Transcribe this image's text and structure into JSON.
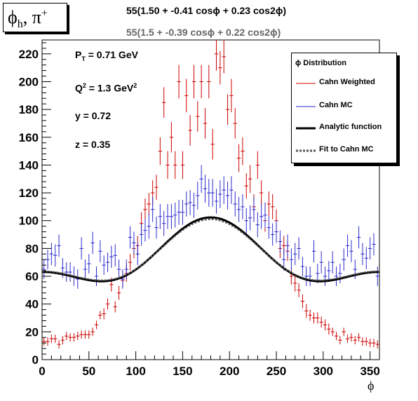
{
  "hist_title": "φh, π+",
  "fit_cahn_weighted": "55(1.50 + -0.41 cosϕ + 0.23 cos2ϕ)",
  "fit_cahn_mc": "55(1.5 + -0.39 cosϕ + 0.22 cos2ϕ)",
  "params": {
    "pt": "PT = 0.71 GeV",
    "q2": "Q2 = 1.3 GeV2",
    "y": "y = 0.72",
    "z": "z = 0.35"
  },
  "legend": {
    "title": "ϕ Distribution",
    "items": [
      "Cahn Weighted",
      "Cahn MC",
      "Analytic function",
      "Fit to Cahn MC"
    ]
  },
  "colors": {
    "cahn_weighted": "#cc0000",
    "cahn_mc": "#2a2acc",
    "analytic": "#000000",
    "fit": "#555555"
  },
  "chart_data": {
    "type": "scatter",
    "xlabel": "ϕ",
    "xlim": [
      0,
      360
    ],
    "ylim": [
      0,
      230
    ],
    "xticks": [
      0,
      50,
      100,
      150,
      200,
      250,
      300,
      350
    ],
    "yticks": [
      0,
      20,
      40,
      60,
      80,
      100,
      120,
      140,
      160,
      180,
      200,
      220
    ],
    "bin_width": 4,
    "series": [
      {
        "name": "Cahn Weighted",
        "x": [
          2,
          6,
          10,
          14,
          18,
          22,
          26,
          30,
          34,
          38,
          42,
          46,
          50,
          54,
          58,
          62,
          66,
          70,
          74,
          78,
          82,
          86,
          90,
          94,
          98,
          102,
          106,
          110,
          114,
          118,
          122,
          126,
          130,
          134,
          138,
          142,
          146,
          150,
          154,
          158,
          162,
          166,
          170,
          174,
          178,
          182,
          186,
          190,
          194,
          198,
          202,
          206,
          210,
          214,
          218,
          222,
          226,
          230,
          234,
          238,
          242,
          246,
          250,
          254,
          258,
          262,
          266,
          270,
          274,
          278,
          282,
          286,
          290,
          294,
          298,
          302,
          306,
          310,
          314,
          318,
          322,
          326,
          330,
          334,
          338,
          342,
          346,
          350,
          354,
          358
        ],
        "y": [
          13,
          13,
          15,
          15,
          11,
          14,
          17,
          16,
          16,
          17,
          18,
          18,
          18,
          20,
          25,
          32,
          33,
          40,
          54,
          38,
          48,
          57,
          62,
          70,
          80,
          82,
          98,
          108,
          112,
          120,
          124,
          150,
          185,
          140,
          160,
          140,
          200,
          140,
          190,
          165,
          200,
          175,
          200,
          170,
          200,
          155,
          220,
          210,
          218,
          180,
          190,
          170,
          145,
          150,
          125,
          130,
          110,
          140,
          120,
          100,
          112,
          110,
          100,
          80,
          82,
          78,
          60,
          55,
          50,
          42,
          35,
          32,
          30,
          30,
          27,
          25,
          22,
          20,
          17,
          14,
          20,
          15,
          16,
          14,
          16,
          13,
          13,
          12,
          12,
          11
        ],
        "err": [
          3,
          3,
          3,
          3,
          3,
          3,
          3,
          3,
          3,
          3,
          3,
          3,
          3,
          3,
          3,
          3,
          4,
          4,
          5,
          4,
          5,
          5,
          6,
          6,
          7,
          7,
          8,
          8,
          8,
          9,
          9,
          10,
          11,
          10,
          11,
          10,
          12,
          10,
          12,
          11,
          12,
          11,
          12,
          11,
          12,
          11,
          12,
          12,
          12,
          11,
          12,
          11,
          10,
          10,
          9,
          10,
          9,
          10,
          9,
          8,
          9,
          9,
          8,
          7,
          7,
          7,
          6,
          6,
          5,
          5,
          5,
          4,
          4,
          4,
          4,
          4,
          4,
          3,
          3,
          3,
          3,
          3,
          3,
          3,
          3,
          3,
          3,
          3,
          3,
          3
        ]
      },
      {
        "name": "Cahn MC",
        "x": [
          2,
          6,
          10,
          14,
          18,
          22,
          26,
          30,
          34,
          38,
          42,
          46,
          50,
          54,
          58,
          62,
          66,
          70,
          74,
          78,
          82,
          86,
          90,
          94,
          98,
          102,
          106,
          110,
          114,
          118,
          122,
          126,
          130,
          134,
          138,
          142,
          146,
          150,
          154,
          158,
          162,
          166,
          170,
          174,
          178,
          182,
          186,
          190,
          194,
          198,
          202,
          206,
          210,
          214,
          218,
          222,
          226,
          230,
          234,
          238,
          242,
          246,
          250,
          254,
          258,
          262,
          266,
          270,
          274,
          278,
          282,
          286,
          290,
          294,
          298,
          302,
          306,
          310,
          314,
          318,
          322,
          326,
          330,
          334,
          338,
          342,
          346,
          350,
          354,
          358
        ],
        "y": [
          65,
          72,
          76,
          75,
          82,
          66,
          63,
          63,
          60,
          58,
          80,
          65,
          69,
          84,
          60,
          78,
          68,
          70,
          74,
          75,
          65,
          58,
          65,
          88,
          84,
          76,
          90,
          93,
          96,
          108,
          95,
          103,
          98,
          103,
          103,
          104,
          106,
          106,
          112,
          113,
          111,
          118,
          130,
          123,
          120,
          120,
          114,
          119,
          122,
          118,
          122,
          112,
          108,
          110,
          100,
          102,
          108,
          97,
          103,
          104,
          95,
          90,
          92,
          85,
          72,
          82,
          72,
          76,
          80,
          67,
          60,
          60,
          78,
          62,
          70,
          60,
          64,
          70,
          60,
          62,
          72,
          82,
          78,
          65,
          88,
          76,
          73,
          80,
          83,
          60
        ],
        "err": [
          7,
          7,
          8,
          8,
          8,
          7,
          7,
          7,
          7,
          7,
          8,
          7,
          7,
          8,
          7,
          8,
          7,
          7,
          8,
          8,
          7,
          7,
          7,
          8,
          8,
          8,
          8,
          8,
          9,
          9,
          8,
          9,
          9,
          9,
          9,
          9,
          9,
          9,
          9,
          9,
          9,
          10,
          10,
          10,
          10,
          10,
          9,
          10,
          10,
          10,
          10,
          9,
          9,
          9,
          9,
          9,
          9,
          9,
          9,
          9,
          8,
          8,
          8,
          8,
          8,
          8,
          8,
          8,
          8,
          7,
          7,
          7,
          8,
          7,
          8,
          7,
          7,
          8,
          7,
          7,
          8,
          8,
          8,
          7,
          8,
          8,
          8,
          8,
          8,
          7
        ]
      }
    ],
    "functions": [
      {
        "name": "Analytic function",
        "formula": "55(1.50 + -0.41 cosϕ + 0.23 cos2ϕ)",
        "a": 1.5,
        "b": -0.41,
        "c": 0.23,
        "scale": 55
      },
      {
        "name": "Fit to Cahn MC",
        "formula": "55(1.5 + -0.39 cosϕ + 0.22 cos2ϕ)",
        "a": 1.5,
        "b": -0.39,
        "c": 0.22,
        "scale": 55
      }
    ]
  }
}
